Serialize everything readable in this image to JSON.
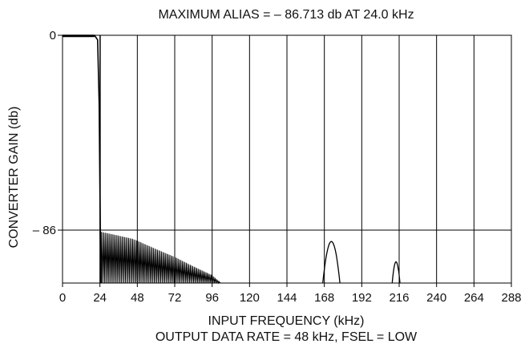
{
  "chart_data": {
    "type": "line",
    "title": "MAXIMUM ALIAS = – 86.713 db AT 24.0 kHz",
    "xlabel": "INPUT FREQUENCY (kHz)",
    "subtitle": "OUTPUT DATA RATE = 48 kHz, FSEL = LOW",
    "ylabel": "CONVERTER GAIN (db)",
    "x_ticks": [
      "0",
      "24",
      "48",
      "72",
      "96",
      "120",
      "144",
      "168",
      "192",
      "216",
      "240",
      "264",
      "288"
    ],
    "y_ticks": [
      {
        "value": 0,
        "label": "0"
      },
      {
        "value": -86,
        "label": "– 86"
      }
    ],
    "xlim": [
      0,
      288
    ],
    "ylim": [
      -110,
      0
    ],
    "grid": true,
    "passband": [
      [
        0,
        0
      ],
      [
        20.5,
        0
      ],
      [
        22.5,
        -2
      ],
      [
        23.5,
        -30
      ],
      [
        24.2,
        -86
      ],
      [
        24.8,
        -110
      ]
    ],
    "alias_envelope": [
      [
        24,
        -87
      ],
      [
        34,
        -89
      ],
      [
        48,
        -92
      ],
      [
        60,
        -95
      ],
      [
        72,
        -98
      ],
      [
        84,
        -102
      ],
      [
        96,
        -106
      ],
      [
        102,
        -110
      ]
    ],
    "alias_bumps": [
      {
        "center": 172.5,
        "half_width": 5.5,
        "peak": -91
      },
      {
        "center": 214,
        "half_width": 2.5,
        "peak": -100
      }
    ],
    "colors": {
      "line": "#000000",
      "grid": "#000000",
      "background": "#ffffff"
    }
  }
}
